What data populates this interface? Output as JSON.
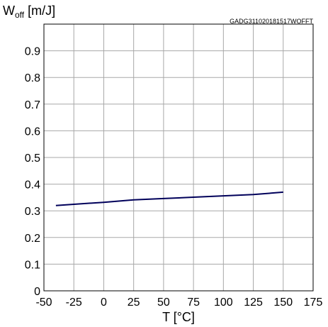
{
  "chart_data": {
    "type": "line",
    "reference": "GADG311020181517WOFFT",
    "ylabel_main": "W",
    "ylabel_sub": "off",
    "ylabel_unit": " [m/J]",
    "xlabel": "T [°C]",
    "xlim": [
      -50,
      175
    ],
    "ylim": [
      0,
      1.0
    ],
    "x_ticks": [
      -50,
      -25,
      0,
      25,
      50,
      75,
      100,
      125,
      150,
      175
    ],
    "x_tick_labels": [
      "-50",
      "-25",
      "0",
      "25",
      "50",
      "75",
      "100",
      "125",
      "150",
      "175"
    ],
    "y_ticks": [
      0,
      0.1,
      0.2,
      0.3,
      0.4,
      0.5,
      0.6,
      0.7,
      0.8,
      0.9
    ],
    "y_tick_labels": [
      "0",
      "0.1",
      "0.2",
      "0.3",
      "0.4",
      "0.5",
      "0.6",
      "0.7",
      "0.8",
      "0.9"
    ],
    "grid": true,
    "series": [
      {
        "color": "#00005a",
        "x": [
          -40,
          0,
          25,
          50,
          75,
          100,
          125,
          150
        ],
        "y": [
          0.32,
          0.332,
          0.341,
          0.346,
          0.351,
          0.356,
          0.361,
          0.37
        ]
      }
    ]
  }
}
